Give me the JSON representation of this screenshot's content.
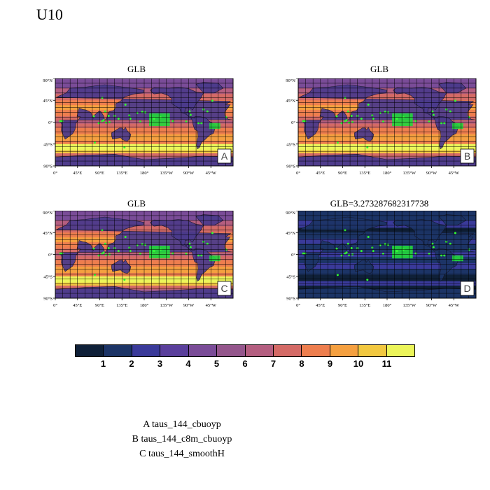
{
  "figure": {
    "variable_title": "U10"
  },
  "panels": [
    {
      "id": "A",
      "title": "GLB",
      "tag": "A",
      "style": "mean"
    },
    {
      "id": "B",
      "title": "GLB",
      "tag": "B",
      "style": "mean"
    },
    {
      "id": "C",
      "title": "GLB",
      "tag": "C",
      "style": "mean"
    },
    {
      "id": "D",
      "title": "GLB=3.273287682317738",
      "tag": "D",
      "style": "diff"
    }
  ],
  "axes": {
    "lat_labels": [
      "90°N",
      "45°N",
      "0°",
      "45°S",
      "90°S"
    ],
    "lon_labels": [
      "0°",
      "45°E",
      "90°E",
      "135°E",
      "180°",
      "135°W",
      "90°W",
      "45°W"
    ]
  },
  "colorbar": {
    "labels": [
      "1",
      "2",
      "3",
      "4",
      "5",
      "6",
      "7",
      "8",
      "9",
      "10",
      "11"
    ],
    "colors": [
      "#0f2038",
      "#1c3466",
      "#3a3a9a",
      "#5a3f9c",
      "#7a4c98",
      "#94568c",
      "#b45e80",
      "#d46a66",
      "#ee7e4e",
      "#f5a040",
      "#f2c840",
      "#ecf55a"
    ]
  },
  "legend": {
    "lines": [
      "A  taus_144_cbuoyp",
      "B  taus_144_c8m_cbuoyp",
      "C  taus_144_smoothH"
    ]
  }
}
